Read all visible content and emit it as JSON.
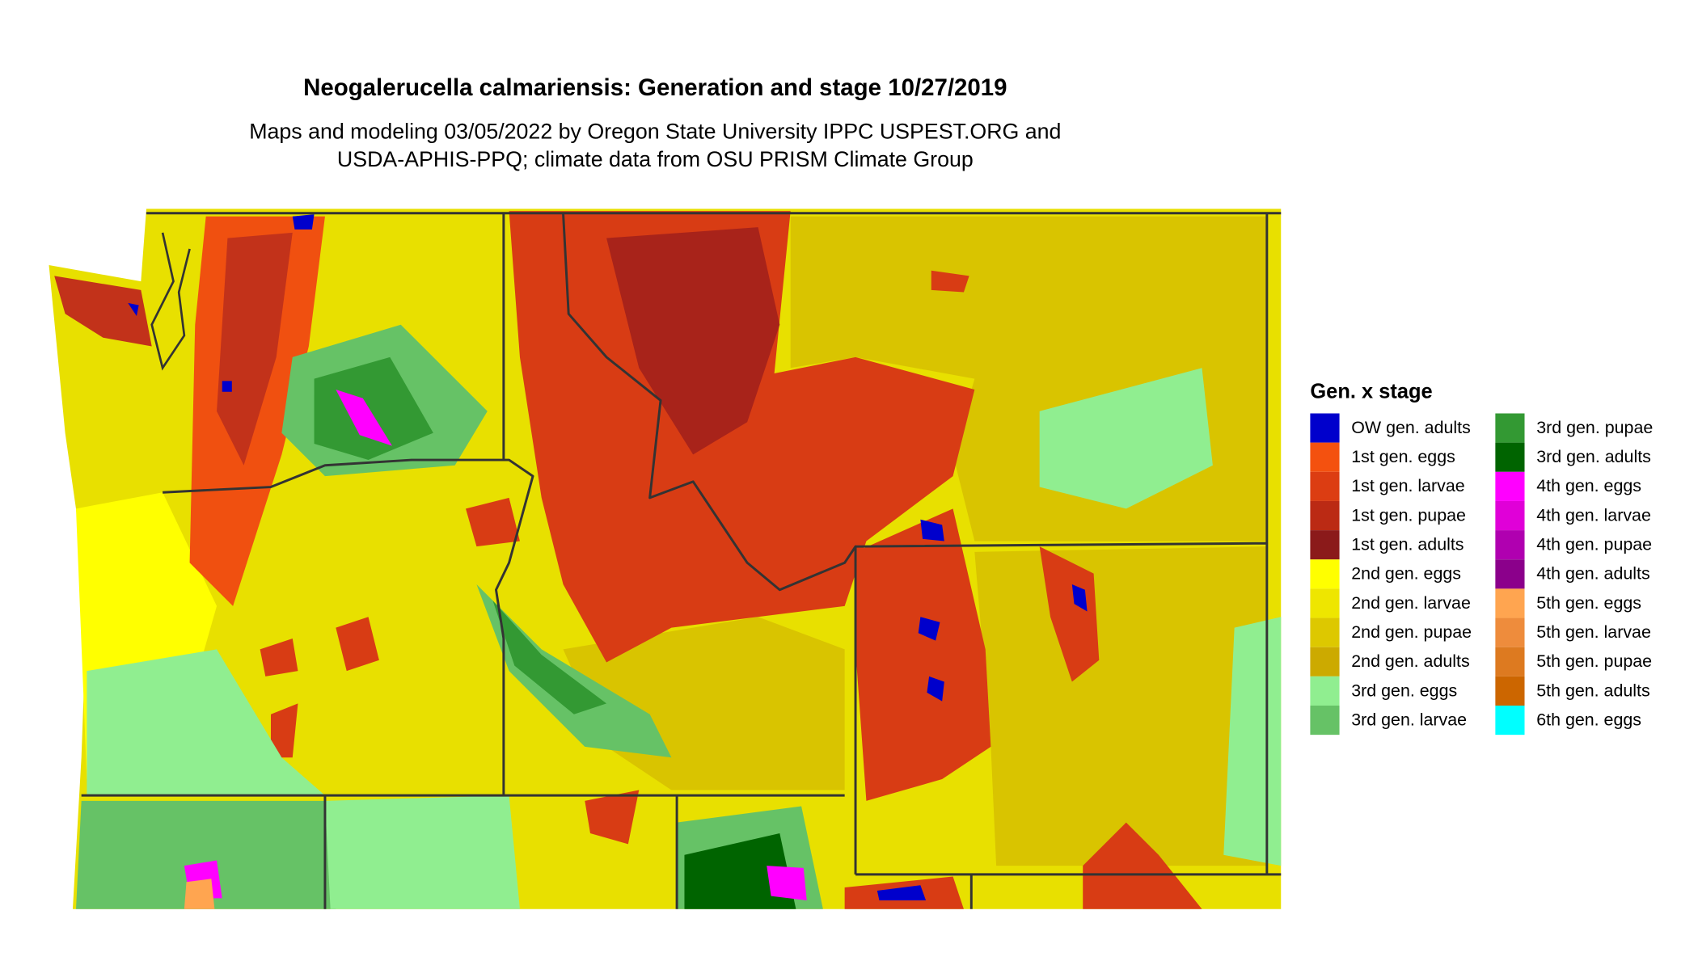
{
  "title": "Neogalerucella calmariensis: Generation and stage 10/27/2019",
  "subtitle": [
    "Maps and modeling 03/05/2022 by Oregon State University IPPC USPEST.ORG and",
    "USDA-APHIS-PPQ; climate data from OSU PRISM Climate Group"
  ],
  "legend": {
    "title": "Gen. x stage",
    "items": [
      {
        "label": "OW gen. adults",
        "color": "#0000cc"
      },
      {
        "label": "1st gen. eggs",
        "color": "#f4510f"
      },
      {
        "label": "1st gen. larvae",
        "color": "#dc3d12"
      },
      {
        "label": "1st gen. pupae",
        "color": "#bb2a14"
      },
      {
        "label": "1st gen. adults",
        "color": "#8b1a1a"
      },
      {
        "label": "2nd gen. eggs",
        "color": "#ffff00"
      },
      {
        "label": "2nd gen. larvae",
        "color": "#eee600"
      },
      {
        "label": "2nd gen. pupae",
        "color": "#ddc800"
      },
      {
        "label": "2nd gen. adults",
        "color": "#ccaa00"
      },
      {
        "label": "3rd gen. eggs",
        "color": "#90ee90"
      },
      {
        "label": "3rd gen. larvae",
        "color": "#66c266"
      },
      {
        "label": "3rd gen. pupae",
        "color": "#339933"
      },
      {
        "label": "3rd gen. adults",
        "color": "#006400"
      },
      {
        "label": "4th gen. eggs",
        "color": "#ff00ff"
      },
      {
        "label": "4th gen. larvae",
        "color": "#e000d8"
      },
      {
        "label": "4th gen. pupae",
        "color": "#b000b0"
      },
      {
        "label": "4th gen. adults",
        "color": "#8b008b"
      },
      {
        "label": "5th gen. eggs",
        "color": "#ffa550"
      },
      {
        "label": "5th gen. larvae",
        "color": "#ee8c3c"
      },
      {
        "label": "5th gen. pupae",
        "color": "#dd7a20"
      },
      {
        "label": "5th gen. adults",
        "color": "#cc6600"
      },
      {
        "label": "6th gen. eggs",
        "color": "#00ffff"
      }
    ]
  }
}
